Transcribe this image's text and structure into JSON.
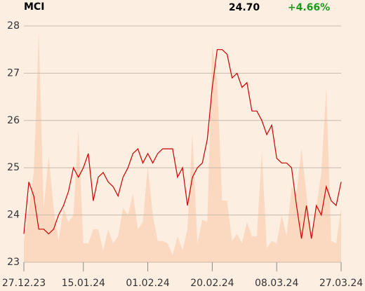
{
  "chart_data": {
    "type": "line",
    "title": "MCI",
    "price": "24.70",
    "change": "+4.66%",
    "categories": [
      "27.12.23",
      null,
      null,
      null,
      null,
      null,
      null,
      null,
      null,
      null,
      null,
      null,
      "15.01.24",
      null,
      null,
      null,
      null,
      null,
      null,
      null,
      null,
      null,
      null,
      null,
      null,
      "01.02.24",
      null,
      null,
      null,
      null,
      null,
      null,
      null,
      null,
      null,
      null,
      null,
      null,
      "20.02.24",
      null,
      null,
      null,
      null,
      null,
      null,
      null,
      null,
      null,
      null,
      null,
      null,
      "08.03.24",
      null,
      null,
      null,
      null,
      null,
      null,
      null,
      null,
      null,
      null,
      null,
      null,
      "27.03.24"
    ],
    "series": [
      {
        "color": "#cc0000",
        "values": [
          23.6,
          24.7,
          24.4,
          23.7,
          23.7,
          23.6,
          23.7,
          24.0,
          24.2,
          24.5,
          25.0,
          24.8,
          25.0,
          25.3,
          24.3,
          24.8,
          24.9,
          24.7,
          24.6,
          24.4,
          24.8,
          25.0,
          25.3,
          25.4,
          25.1,
          25.3,
          25.1,
          25.3,
          25.4,
          25.4,
          25.4,
          24.8,
          25.0,
          24.2,
          24.8,
          25.0,
          25.1,
          25.6,
          26.7,
          27.5,
          27.5,
          27.4,
          26.9,
          27.0,
          26.7,
          26.8,
          26.2,
          26.2,
          26.0,
          25.7,
          25.9,
          25.2,
          25.1,
          25.1,
          25.0,
          24.2,
          23.5,
          24.2,
          23.5,
          24.2,
          24.0,
          24.6,
          24.3,
          24.2,
          24.7
        ]
      },
      {
        "color": "#fbd9c1",
        "axis": "y2",
        "values": [
          9,
          23,
          38,
          97,
          23,
          45,
          23,
          9,
          23,
          17,
          20,
          56,
          8,
          8,
          14,
          14,
          5,
          14,
          8,
          11,
          23,
          20,
          29,
          14,
          17,
          41,
          20,
          9,
          9,
          8,
          3,
          11,
          5,
          14,
          55,
          8,
          18,
          17,
          92,
          77,
          26,
          26,
          9,
          12,
          8,
          17,
          11,
          11,
          47,
          6,
          9,
          8,
          20,
          11,
          32,
          29,
          48,
          29,
          11,
          23,
          38,
          74,
          9,
          8,
          23
        ]
      }
    ],
    "ylim": [
      23,
      28
    ],
    "yticks": [
      23,
      24,
      25,
      26,
      27,
      28
    ],
    "y2lim": [
      0,
      100
    ],
    "grid": true
  }
}
